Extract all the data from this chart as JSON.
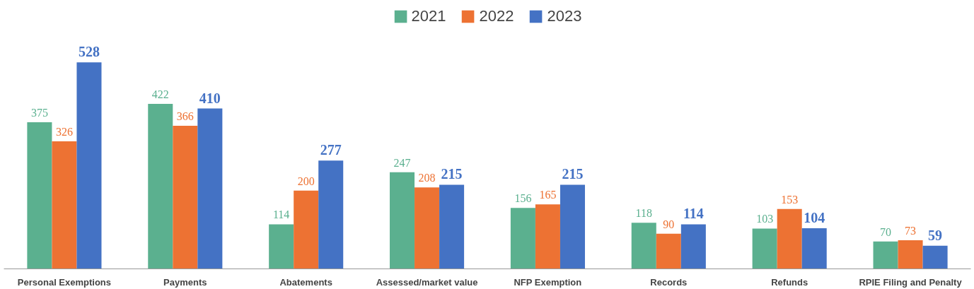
{
  "chart_data": {
    "type": "bar",
    "categories": [
      "Personal Exemptions",
      "Payments",
      "Abatements",
      "Assessed/market value",
      "NFP Exemption",
      "Records",
      "Refunds",
      "RPIE Filing and Penalty"
    ],
    "series": [
      {
        "name": "2021",
        "color": "#5bb08f",
        "values": [
          375,
          422,
          114,
          247,
          156,
          118,
          103,
          70
        ]
      },
      {
        "name": "2022",
        "color": "#ed7233",
        "values": [
          326,
          366,
          200,
          208,
          165,
          90,
          153,
          73
        ]
      },
      {
        "name": "2023",
        "color": "#4472c4",
        "values": [
          528,
          410,
          277,
          215,
          215,
          114,
          104,
          59
        ]
      }
    ],
    "data_labels": true,
    "legend": "top",
    "grid": false
  }
}
